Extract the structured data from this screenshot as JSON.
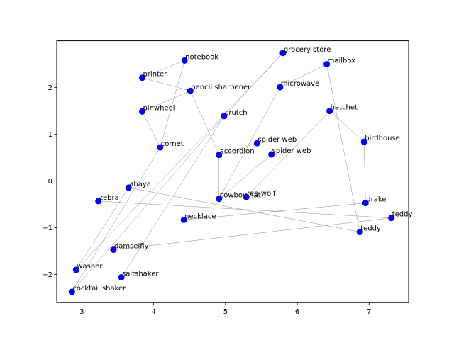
{
  "chart_data": {
    "type": "scatter",
    "title": "",
    "xlabel": "",
    "ylabel": "",
    "xlim": [
      2.65,
      7.55
    ],
    "ylim": [
      -2.6,
      3.0
    ],
    "xticks": [
      3,
      4,
      5,
      6,
      7
    ],
    "yticks": [
      -2,
      -1,
      0,
      1,
      2
    ],
    "grid": false,
    "marker_color": "#0000ff",
    "edge_color": "#8c8c8c",
    "points": [
      {
        "label": "notebook",
        "x": 4.43,
        "y": 2.58
      },
      {
        "label": "grocery store",
        "x": 5.8,
        "y": 2.74
      },
      {
        "label": "mailbox",
        "x": 6.41,
        "y": 2.5
      },
      {
        "label": "printer",
        "x": 3.84,
        "y": 2.21
      },
      {
        "label": "pencil sharpener",
        "x": 4.51,
        "y": 1.93
      },
      {
        "label": "microwave",
        "x": 5.76,
        "y": 2.01
      },
      {
        "label": "pinwheel",
        "x": 3.84,
        "y": 1.49
      },
      {
        "label": "crutch",
        "x": 4.98,
        "y": 1.39
      },
      {
        "label": "hatchet",
        "x": 6.45,
        "y": 1.5
      },
      {
        "label": "birdhouse",
        "x": 6.93,
        "y": 0.84
      },
      {
        "label": "cornet",
        "x": 4.09,
        "y": 0.72
      },
      {
        "label": "spider web",
        "x": 5.44,
        "y": 0.81
      },
      {
        "label": "spider web",
        "x": 5.64,
        "y": 0.57
      },
      {
        "label": "accordion",
        "x": 4.91,
        "y": 0.56
      },
      {
        "label": "abaya",
        "x": 3.65,
        "y": -0.14
      },
      {
        "label": "zebra",
        "x": 3.23,
        "y": -0.43
      },
      {
        "label": "cowboy hat",
        "x": 4.91,
        "y": -0.38
      },
      {
        "label": "red wolf",
        "x": 5.29,
        "y": -0.34
      },
      {
        "label": "drake",
        "x": 6.95,
        "y": -0.47
      },
      {
        "label": "teddy",
        "x": 7.31,
        "y": -0.79
      },
      {
        "label": "teddy",
        "x": 6.87,
        "y": -1.09
      },
      {
        "label": "necklace",
        "x": 4.42,
        "y": -0.83
      },
      {
        "label": "damselfly",
        "x": 3.44,
        "y": -1.47
      },
      {
        "label": "washer",
        "x": 2.92,
        "y": -1.9
      },
      {
        "label": "saltshaker",
        "x": 3.55,
        "y": -2.06
      },
      {
        "label": "cocktail shaker",
        "x": 2.86,
        "y": -2.37
      }
    ],
    "edges": [
      [
        0,
        3
      ],
      [
        0,
        10
      ],
      [
        3,
        4
      ],
      [
        4,
        6
      ],
      [
        4,
        13
      ],
      [
        1,
        7
      ],
      [
        1,
        23
      ],
      [
        2,
        5
      ],
      [
        2,
        20
      ],
      [
        5,
        16
      ],
      [
        7,
        24
      ],
      [
        7,
        25
      ],
      [
        8,
        9
      ],
      [
        8,
        17
      ],
      [
        9,
        18
      ],
      [
        11,
        13
      ],
      [
        12,
        16
      ],
      [
        13,
        16
      ],
      [
        14,
        20
      ],
      [
        14,
        23
      ],
      [
        15,
        19
      ],
      [
        18,
        21
      ],
      [
        19,
        22
      ],
      [
        6,
        10
      ],
      [
        10,
        25
      ]
    ]
  }
}
